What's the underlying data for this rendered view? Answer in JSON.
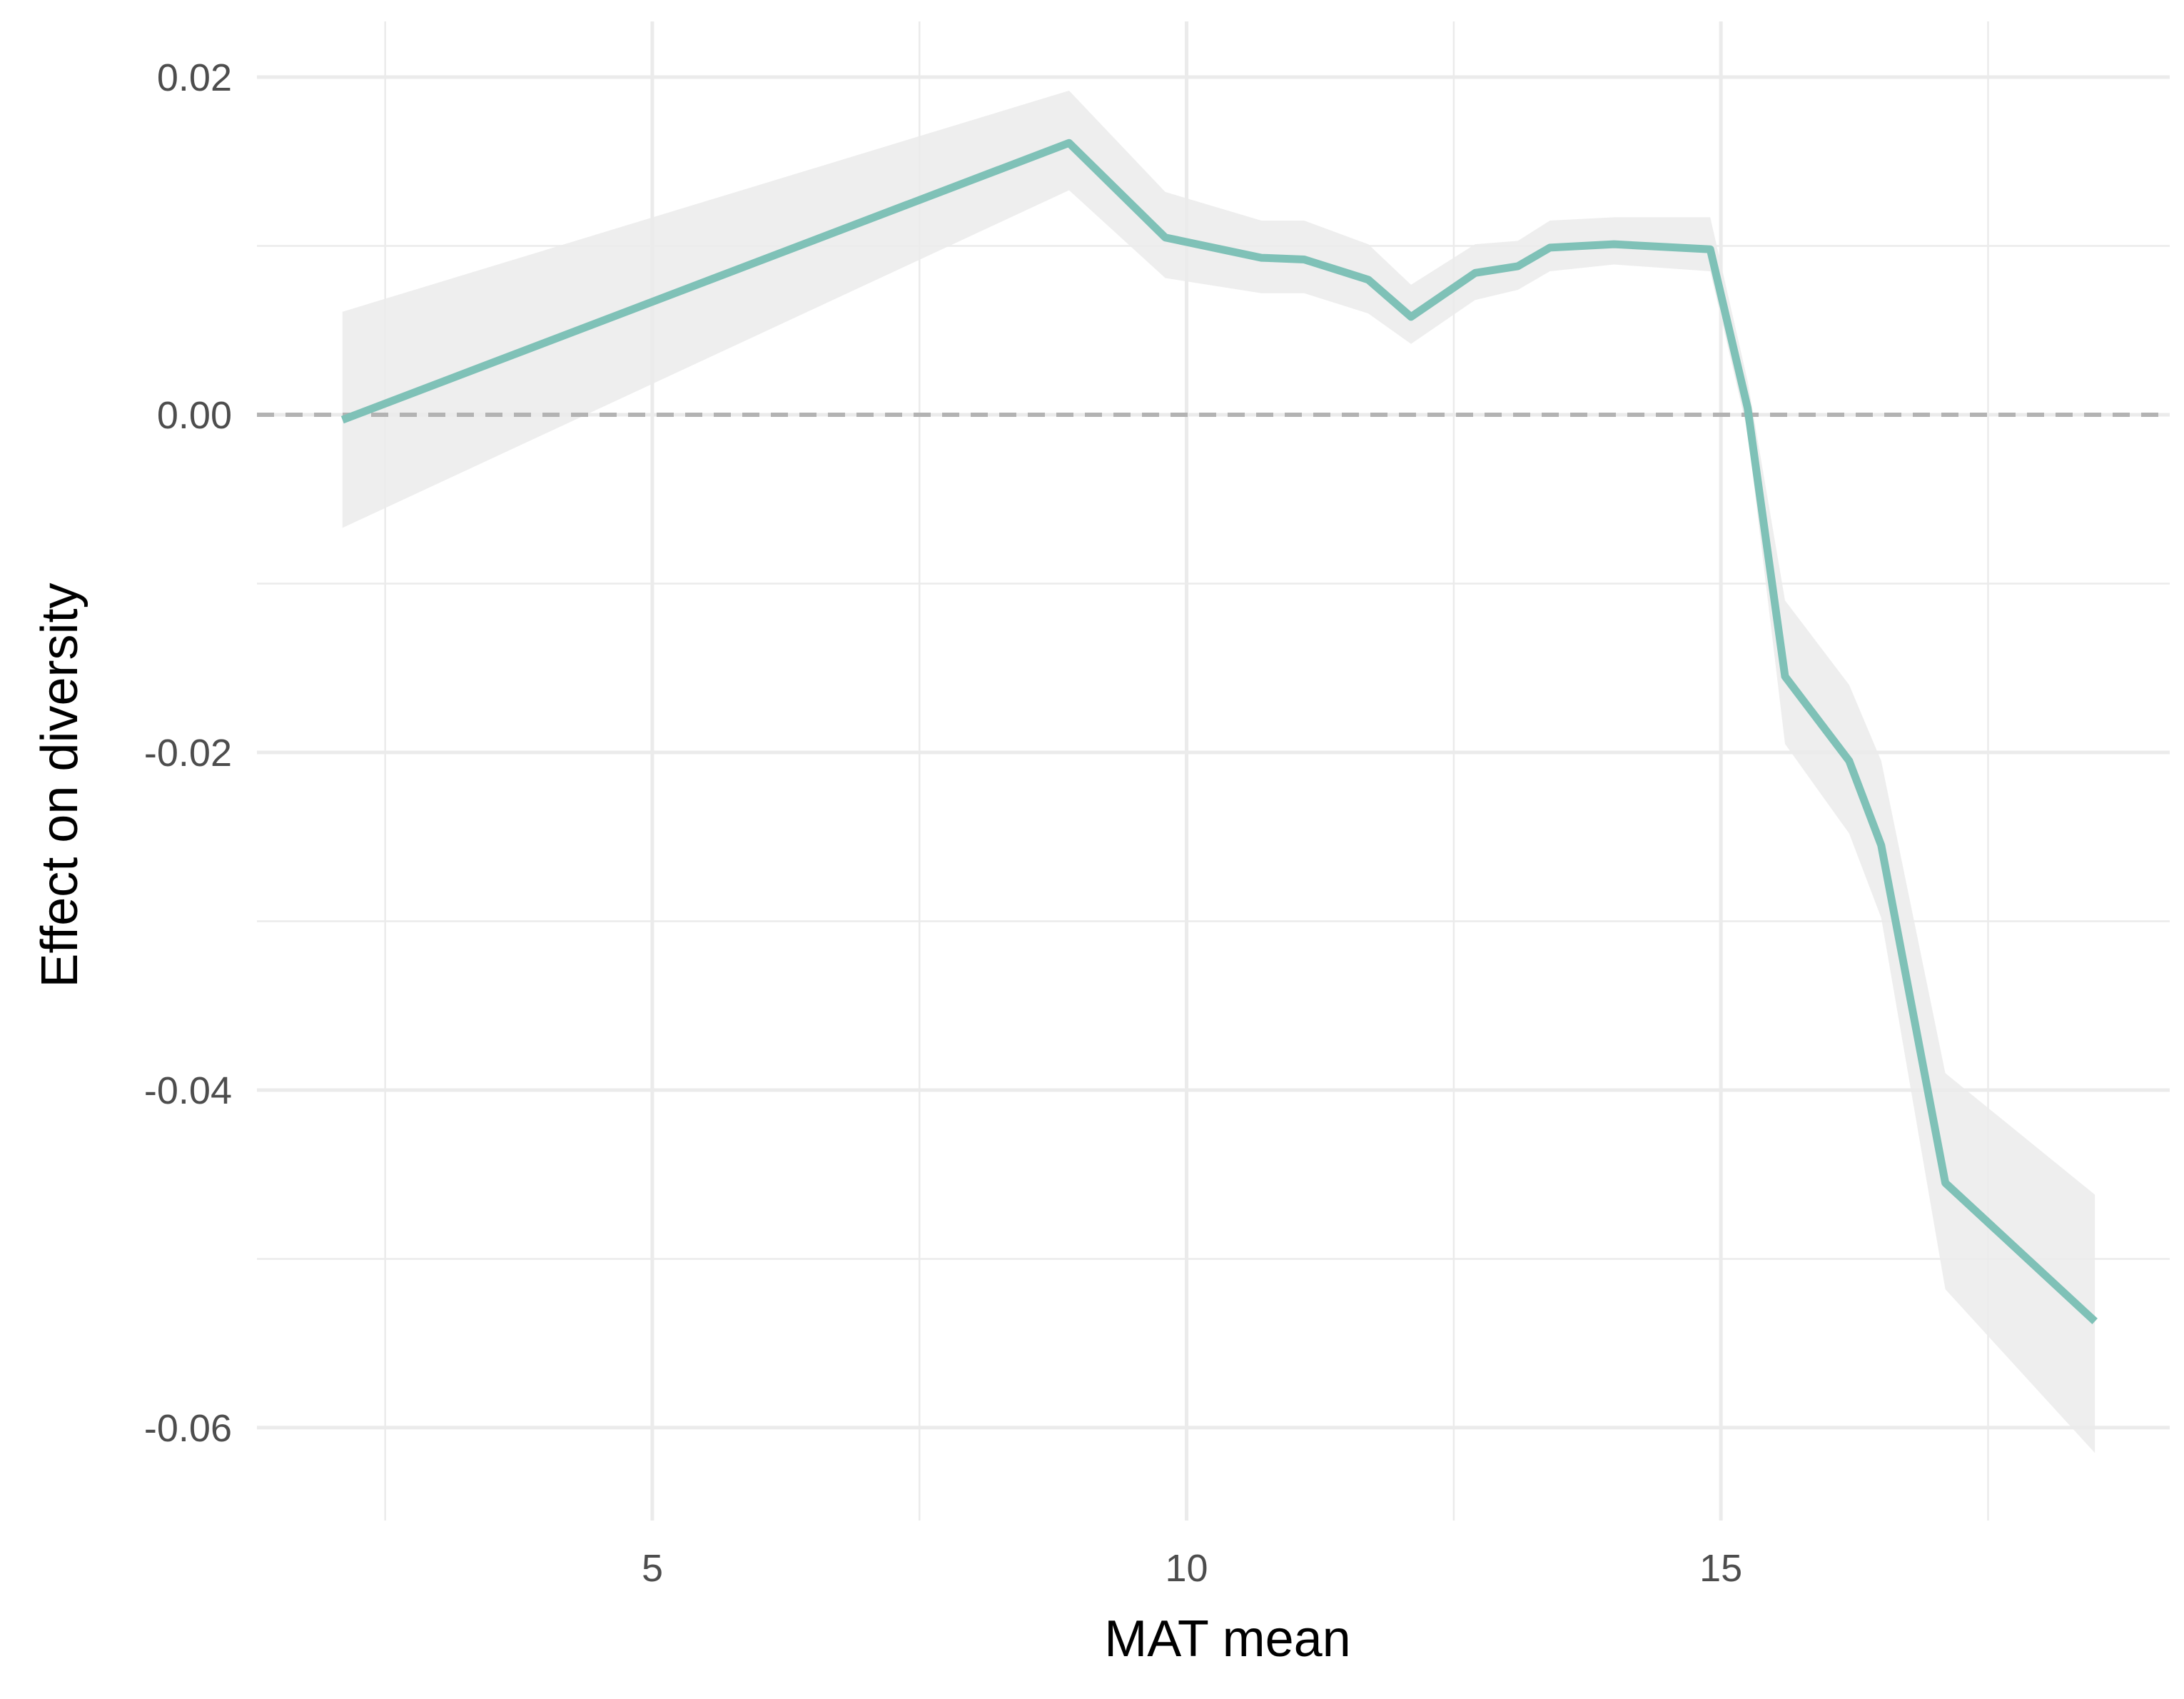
{
  "chart_data": {
    "type": "line",
    "title": "",
    "xlabel": "MAT mean",
    "ylabel": "Effect on diversity",
    "xlim": [
      1.3,
      19.2
    ],
    "ylim": [
      -0.0655,
      0.0233
    ],
    "x_ticks": [
      5,
      10,
      15
    ],
    "x_tick_labels": [
      "5",
      "10",
      "15"
    ],
    "y_ticks": [
      -0.06,
      -0.04,
      -0.02,
      0.0,
      0.02
    ],
    "y_tick_labels": [
      "-0.06",
      "-0.04",
      "-0.02",
      "0.00",
      "0.02"
    ],
    "grid": true,
    "reference_line": {
      "y": 0,
      "style": "dashed"
    },
    "series": [
      {
        "x": [
          2.1,
          8.9,
          9.8,
          10.7,
          11.1,
          11.7,
          12.1,
          12.7,
          13.1,
          13.4,
          14.0,
          14.9,
          15.25,
          15.6,
          16.2,
          16.5,
          17.1,
          18.5
        ],
        "y": [
          -0.0003,
          0.0161,
          0.0105,
          0.0093,
          0.0092,
          0.008,
          0.0058,
          0.0084,
          0.0088,
          0.0099,
          0.0101,
          0.0098,
          0.0004,
          -0.0155,
          -0.0205,
          -0.0255,
          -0.0455,
          -0.0537
        ],
        "lower": [
          -0.0067,
          0.0133,
          0.0081,
          0.0072,
          0.0072,
          0.006,
          0.0042,
          0.0068,
          0.0074,
          0.0085,
          0.0089,
          0.0085,
          -0.001,
          -0.0195,
          -0.0248,
          -0.0298,
          -0.0518,
          -0.0615
        ],
        "upper": [
          0.0061,
          0.0192,
          0.0132,
          0.0115,
          0.0115,
          0.0101,
          0.0077,
          0.0101,
          0.0103,
          0.0115,
          0.0117,
          0.0117,
          0.002,
          -0.011,
          -0.016,
          -0.0205,
          -0.039,
          -0.0462
        ]
      }
    ]
  },
  "colors": {
    "line": "#7fc1b7",
    "ribbon": "#ebebeb",
    "grid": "#ebebeb",
    "reference": "#b3b3b3"
  }
}
